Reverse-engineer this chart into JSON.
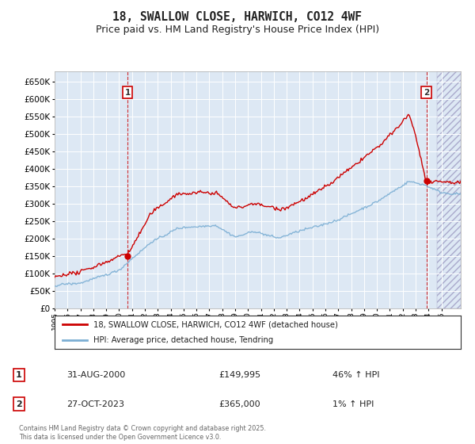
{
  "title": "18, SWALLOW CLOSE, HARWICH, CO12 4WF",
  "subtitle": "Price paid vs. HM Land Registry's House Price Index (HPI)",
  "ylim": [
    0,
    680000
  ],
  "xlim": [
    1995.0,
    2026.5
  ],
  "yticks": [
    0,
    50000,
    100000,
    150000,
    200000,
    250000,
    300000,
    350000,
    400000,
    450000,
    500000,
    550000,
    600000,
    650000
  ],
  "ytick_labels": [
    "£0",
    "£50K",
    "£100K",
    "£150K",
    "£200K",
    "£250K",
    "£300K",
    "£350K",
    "£400K",
    "£450K",
    "£500K",
    "£550K",
    "£600K",
    "£650K"
  ],
  "plot_bg_color": "#dde8f4",
  "grid_color": "#ffffff",
  "line1_color": "#cc0000",
  "line2_color": "#7cafd4",
  "title_fontsize": 10.5,
  "subtitle_fontsize": 9,
  "legend_label1": "18, SWALLOW CLOSE, HARWICH, CO12 4WF (detached house)",
  "legend_label2": "HPI: Average price, detached house, Tendring",
  "purchase1_date": 2000.66,
  "purchase1_price": 149995,
  "purchase2_date": 2023.83,
  "purchase2_price": 365000,
  "annotation1_date": "31-AUG-2000",
  "annotation1_price": "£149,995",
  "annotation1_hpi": "46% ↑ HPI",
  "annotation2_date": "27-OCT-2023",
  "annotation2_price": "£365,000",
  "annotation2_hpi": "1% ↑ HPI",
  "footer": "Contains HM Land Registry data © Crown copyright and database right 2025.\nThis data is licensed under the Open Government Licence v3.0."
}
